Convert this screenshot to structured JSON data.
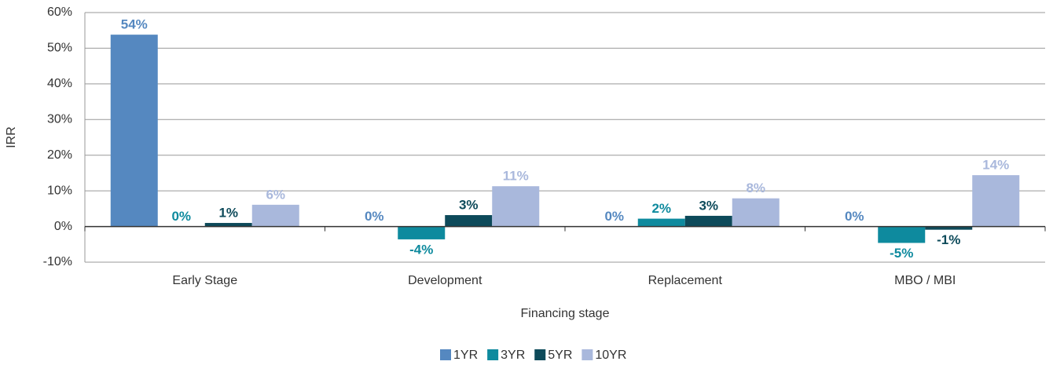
{
  "chart_data": {
    "type": "bar",
    "y_label": "IRR",
    "x_label": "Financing stage",
    "categories": [
      "Early Stage",
      "Development",
      "Replacement",
      "MBO / MBI"
    ],
    "series": [
      {
        "name": "1YR",
        "color": "#5588c0",
        "values": [
          53.8,
          0,
          0,
          0
        ],
        "value_labels": [
          "54%",
          "0%",
          "0%",
          "0%"
        ]
      },
      {
        "name": "3YR",
        "color": "#0e8a9e",
        "values": [
          0,
          -3.6,
          2.2,
          -4.6
        ],
        "value_labels": [
          "0%",
          "-4%",
          "2%",
          "-5%"
        ]
      },
      {
        "name": "5YR",
        "color": "#0d4a5a",
        "values": [
          1.0,
          3.2,
          3.0,
          -0.9
        ],
        "value_labels": [
          "1%",
          "3%",
          "3%",
          "-1%"
        ]
      },
      {
        "name": "10YR",
        "color": "#a9b8dc",
        "values": [
          6.1,
          11.3,
          7.9,
          14.4
        ],
        "value_labels": [
          "6%",
          "11%",
          "8%",
          "14%"
        ]
      }
    ],
    "ylim": [
      -10,
      60
    ],
    "yticks": [
      {
        "value": -10,
        "label": "-10%"
      },
      {
        "value": 0,
        "label": "0%"
      },
      {
        "value": 10,
        "label": "10%"
      },
      {
        "value": 20,
        "label": "20%"
      },
      {
        "value": 30,
        "label": "30%"
      },
      {
        "value": 40,
        "label": "40%"
      },
      {
        "value": 50,
        "label": "50%"
      },
      {
        "value": 60,
        "label": "60%"
      }
    ],
    "grid": true,
    "legend": "bottom"
  }
}
